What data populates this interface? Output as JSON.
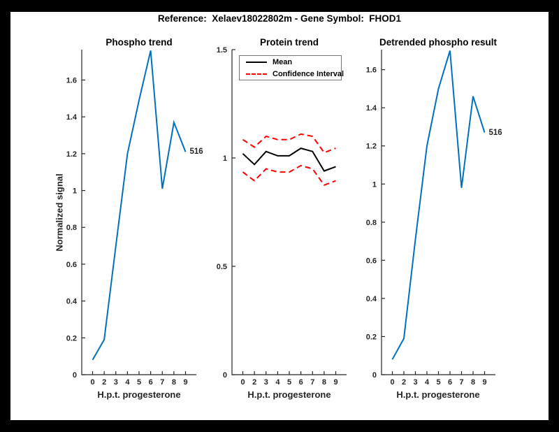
{
  "figure": {
    "title": "Reference:  Xelaev18022802m - Gene Symbol:  FHOD1",
    "background_color": "#ffffff",
    "frame_color": "#000000",
    "axis_color": "#262626",
    "title_color": "#000000"
  },
  "chart_data": [
    {
      "type": "line",
      "title": "Phospho trend",
      "xlabel": "H.p.t. progesterone",
      "ylabel": "Normalized signal",
      "x_tick_labels": [
        "0",
        "2",
        "3",
        "4",
        "5",
        "6",
        "7",
        "8",
        "9"
      ],
      "y_tick_values": [
        0,
        0.2,
        0.4,
        0.6,
        0.8,
        1,
        1.2,
        1.4,
        1.6
      ],
      "y_tick_labels": [
        "0",
        "0.2",
        "0.4",
        "0.6",
        "0.8",
        "1",
        "1.2",
        "1.4",
        "1.6"
      ],
      "ylim": [
        0,
        1.765
      ],
      "grid": false,
      "series": [
        {
          "name": "phospho-signal",
          "color": "#0072BD",
          "style": "solid",
          "values": [
            0.08,
            0.19,
            0.7,
            1.2,
            1.49,
            1.76,
            1.01,
            1.37,
            1.21
          ]
        }
      ],
      "end_label": "516"
    },
    {
      "type": "line",
      "title": "Protein trend",
      "xlabel": "H.p.t. progesterone",
      "ylabel": "",
      "x_tick_labels": [
        "0",
        "2",
        "3",
        "4",
        "5",
        "6",
        "7",
        "8",
        "9"
      ],
      "y_tick_values": [
        0,
        0.5,
        1,
        1.5
      ],
      "y_tick_labels": [
        "0",
        "0.5",
        "1",
        "1.5"
      ],
      "ylim": [
        0,
        1.5
      ],
      "grid": false,
      "legend": {
        "position": "top-left-inside",
        "entries": [
          {
            "label": "Mean",
            "color": "#000000",
            "style": "solid"
          },
          {
            "label": "Confidence Interval",
            "color": "#ff0000",
            "style": "dashed"
          }
        ]
      },
      "series": [
        {
          "name": "mean",
          "color": "#000000",
          "style": "solid",
          "values": [
            1.02,
            0.97,
            1.03,
            1.01,
            1.01,
            1.045,
            1.03,
            0.94,
            0.96
          ]
        },
        {
          "name": "confidence-upper",
          "color": "#ff0000",
          "style": "dashed",
          "values": [
            1.085,
            1.05,
            1.1,
            1.085,
            1.085,
            1.11,
            1.1,
            1.025,
            1.045
          ]
        },
        {
          "name": "confidence-lower",
          "color": "#ff0000",
          "style": "dashed",
          "values": [
            0.935,
            0.895,
            0.95,
            0.935,
            0.935,
            0.965,
            0.95,
            0.875,
            0.895
          ]
        }
      ]
    },
    {
      "type": "line",
      "title": "Detrended phospho result",
      "xlabel": "H.p.t. progesterone",
      "ylabel": "",
      "x_tick_labels": [
        "0",
        "2",
        "3",
        "4",
        "5",
        "6",
        "7",
        "8",
        "9"
      ],
      "y_tick_values": [
        0,
        0.2,
        0.4,
        0.6,
        0.8,
        1,
        1.2,
        1.4,
        1.6
      ],
      "y_tick_labels": [
        "0",
        "0.2",
        "0.4",
        "0.6",
        "0.8",
        "1",
        "1.2",
        "1.4",
        "1.6"
      ],
      "ylim": [
        0,
        1.705
      ],
      "grid": false,
      "series": [
        {
          "name": "detrended-phospho-signal",
          "color": "#0072BD",
          "style": "solid",
          "values": [
            0.08,
            0.19,
            0.71,
            1.2,
            1.5,
            1.7,
            0.98,
            1.46,
            1.27
          ]
        }
      ],
      "end_label": "516"
    }
  ]
}
